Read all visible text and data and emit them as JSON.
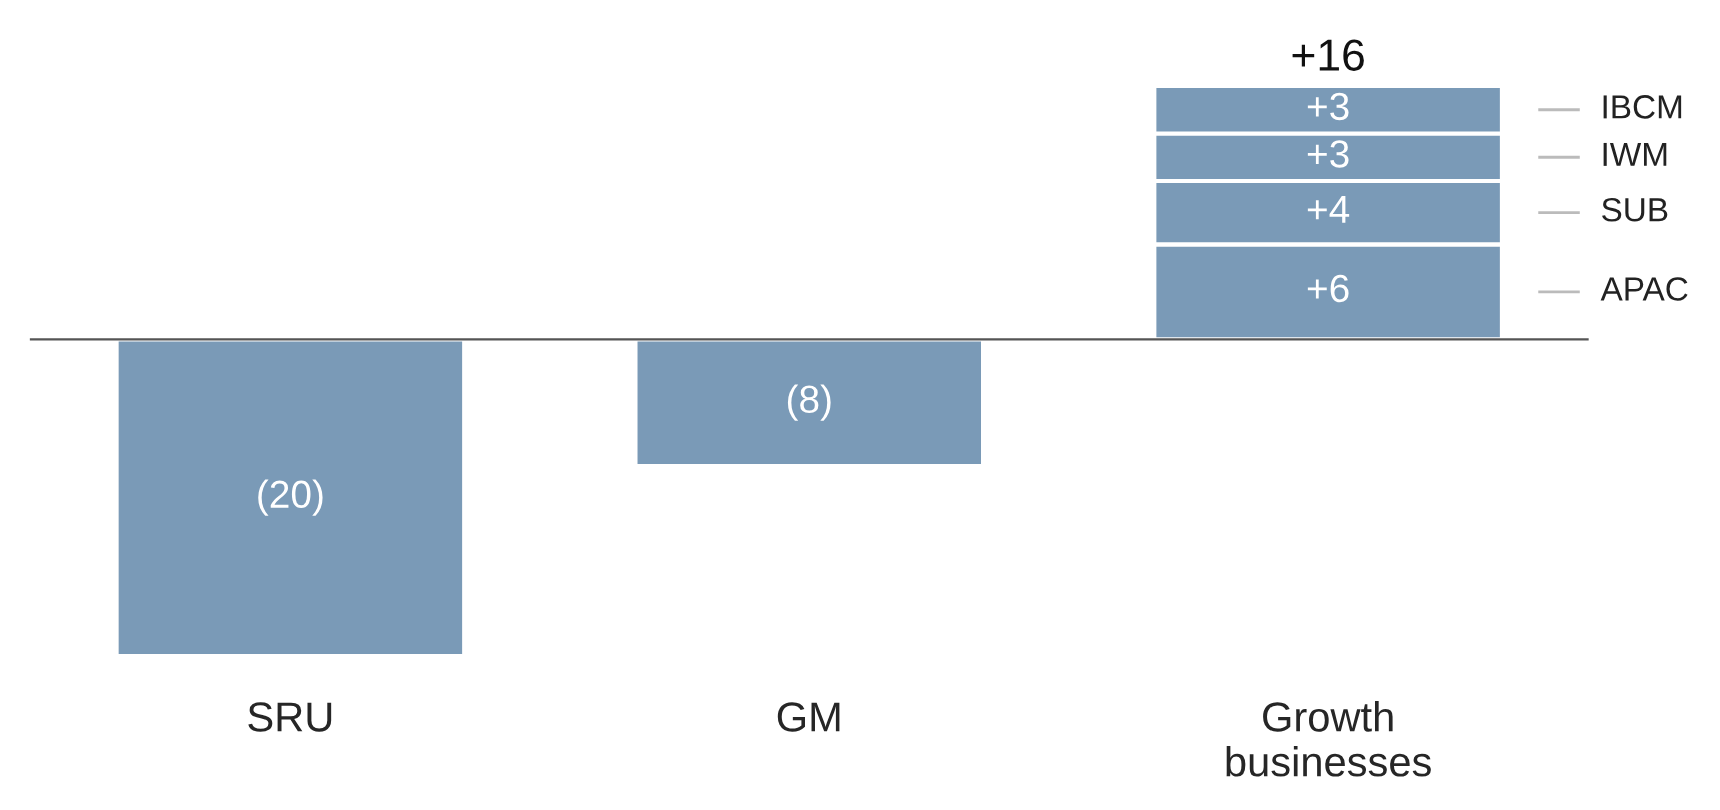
{
  "chart_data": {
    "type": "bar",
    "stacked": true,
    "categories": [
      "SRU",
      "GM",
      "Growth\nbusinesses"
    ],
    "series": [
      {
        "color": "#7a9ab7",
        "values": [
          -20,
          -8,
          null
        ],
        "value_labels": [
          "(20)",
          "(8)",
          null
        ]
      },
      {
        "name": "APAC",
        "color": "#7a9ab7",
        "values": [
          null,
          null,
          6
        ],
        "value_labels": [
          null,
          null,
          "+6"
        ]
      },
      {
        "name": "SUB",
        "color": "#7a9ab7",
        "values": [
          null,
          null,
          4
        ],
        "value_labels": [
          null,
          null,
          "+4"
        ]
      },
      {
        "name": "IWM",
        "color": "#7a9ab7",
        "values": [
          null,
          null,
          3
        ],
        "value_labels": [
          null,
          null,
          "+3"
        ]
      },
      {
        "name": "IBCM",
        "color": "#7a9ab7",
        "values": [
          null,
          null,
          3
        ],
        "value_labels": [
          null,
          null,
          "+3"
        ]
      }
    ],
    "totals": [
      null,
      null,
      "+16"
    ],
    "tick_labels": "x",
    "grid": false,
    "legend": false
  }
}
